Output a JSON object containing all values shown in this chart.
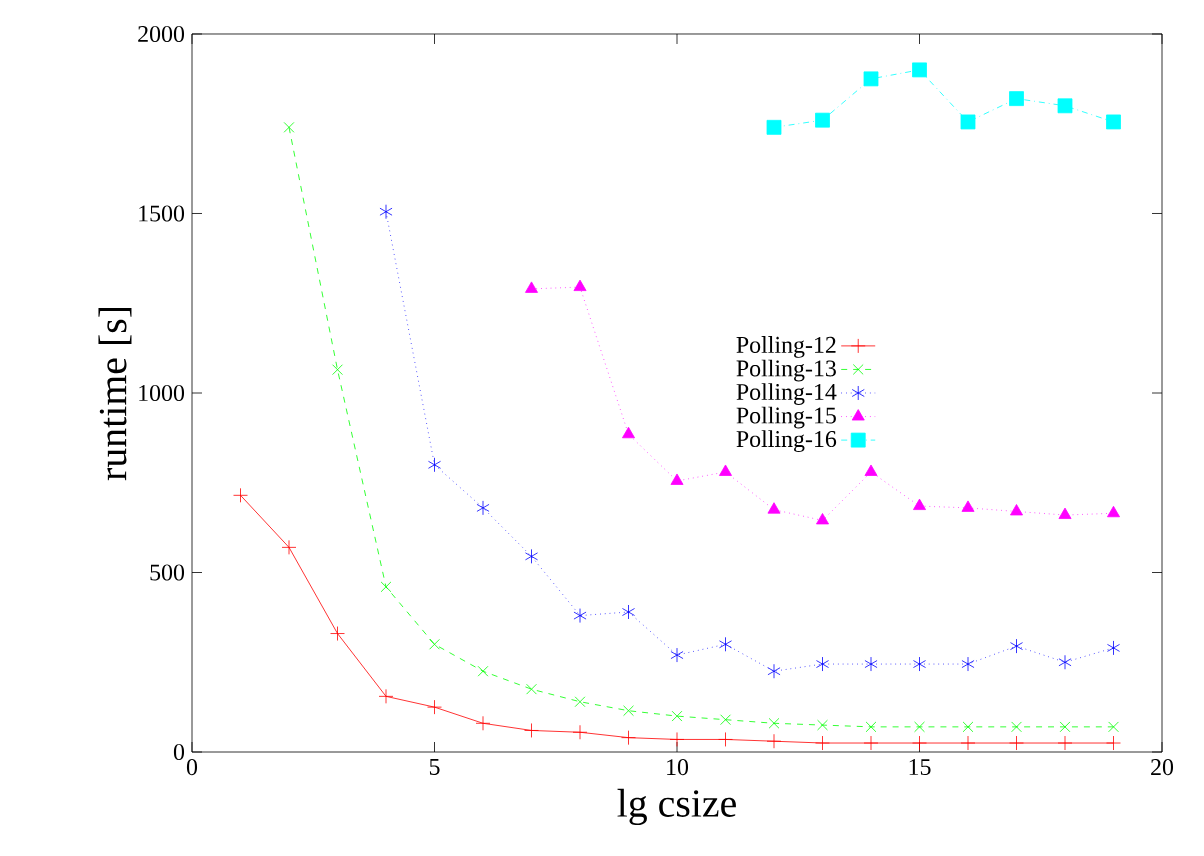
{
  "chart_data": {
    "type": "line",
    "xlabel": "lg csize",
    "ylabel": "runtime [s]",
    "x": [
      1,
      2,
      3,
      4,
      5,
      6,
      7,
      8,
      9,
      10,
      11,
      12,
      13,
      14,
      15,
      16,
      17,
      18,
      19
    ],
    "series": [
      {
        "name": "Polling-12",
        "color": "#ff0000",
        "marker": "cross",
        "line_style": "solid",
        "values": [
          715,
          570,
          330,
          155,
          125,
          80,
          60,
          55,
          40,
          35,
          35,
          30,
          25,
          25,
          25,
          25,
          25,
          25,
          25
        ]
      },
      {
        "name": "Polling-13",
        "color": "#00ff00",
        "marker": "cross",
        "line_style": "dashed",
        "values": [
          null,
          1740,
          1065,
          460,
          300,
          225,
          175,
          140,
          115,
          100,
          90,
          80,
          75,
          70,
          70,
          70,
          70,
          70,
          70
        ]
      },
      {
        "name": "Polling-14",
        "color": "#0000ff",
        "marker": "cross",
        "line_style": "dotted",
        "values": [
          null,
          null,
          null,
          1505,
          800,
          680,
          545,
          380,
          390,
          270,
          300,
          225,
          245,
          245,
          245,
          245,
          295,
          250,
          290
        ]
      },
      {
        "name": "Polling-15",
        "color": "#ff00ff",
        "marker": "triangle",
        "line_style": "dotted",
        "values": [
          null,
          null,
          null,
          null,
          null,
          null,
          1290,
          1295,
          885,
          755,
          780,
          675,
          645,
          780,
          685,
          680,
          670,
          660,
          665
        ]
      },
      {
        "name": "Polling-16",
        "color": "#00ffff",
        "marker": "square",
        "line_style": "dashdot",
        "values": [
          null,
          null,
          null,
          null,
          null,
          null,
          null,
          null,
          null,
          null,
          null,
          1740,
          1760,
          1875,
          1900,
          1755,
          1820,
          1800,
          1755
        ]
      }
    ],
    "xlim": [
      0,
      20
    ],
    "ylim": [
      0,
      2000
    ],
    "xticks": [
      0,
      5,
      10,
      15,
      20
    ],
    "yticks": [
      0,
      500,
      1000,
      1500,
      2000
    ],
    "grid": false,
    "legend": "right"
  }
}
